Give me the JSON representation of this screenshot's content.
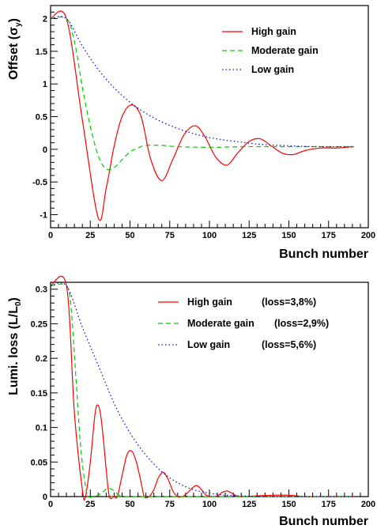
{
  "chart_data": [
    {
      "type": "line",
      "xlabel": "Bunch number",
      "ylabel": "Offset (σ",
      "ylabel_sub": "y",
      "ylabel_tail": ")",
      "xlim": [
        0,
        200
      ],
      "ylim": [
        -1.2,
        2.2
      ],
      "xticks": [
        0,
        25,
        50,
        75,
        100,
        125,
        150,
        175,
        200
      ],
      "yticks": [
        -1,
        -0.5,
        0,
        0.5,
        1,
        1.5,
        2
      ],
      "grid": false,
      "legend_position": "top-right",
      "series": [
        {
          "name": "High gain",
          "color": "#ff0000",
          "style": "solid",
          "x": [
            0,
            10,
            20,
            30,
            35,
            40,
            45,
            51,
            57,
            63,
            70,
            77,
            84,
            91,
            97,
            104,
            111,
            118,
            125,
            132,
            139,
            146,
            153,
            160,
            170,
            180,
            191
          ],
          "y": [
            2.0,
            2.0,
            0.45,
            -1.05,
            -0.6,
            0.05,
            0.5,
            0.68,
            0.5,
            -0.15,
            -0.48,
            -0.15,
            0.22,
            0.36,
            0.2,
            -0.12,
            -0.24,
            -0.05,
            0.12,
            0.16,
            0.05,
            -0.06,
            -0.08,
            -0.02,
            0.02,
            0.02,
            0.04
          ]
        },
        {
          "name": "Moderate gain",
          "color": "#00cc00",
          "style": "dashed",
          "x": [
            0,
            10,
            15,
            20,
            25,
            30,
            35,
            40,
            45,
            50,
            55,
            60,
            70,
            80,
            100,
            120,
            140,
            160,
            191
          ],
          "y": [
            2.0,
            2.0,
            1.65,
            0.95,
            0.35,
            -0.1,
            -0.3,
            -0.28,
            -0.16,
            -0.04,
            0.02,
            0.06,
            0.06,
            0.04,
            0.03,
            0.04,
            0.04,
            0.04,
            0.04
          ]
        },
        {
          "name": "Low gain",
          "color": "#0000ff",
          "style": "dotted",
          "x": [
            0,
            10,
            20,
            30,
            40,
            50,
            60,
            70,
            80,
            90,
            100,
            110,
            120,
            130,
            140,
            150,
            160,
            170,
            180,
            191
          ],
          "y": [
            2.0,
            2.0,
            1.58,
            1.22,
            0.94,
            0.72,
            0.55,
            0.42,
            0.32,
            0.24,
            0.18,
            0.14,
            0.11,
            0.08,
            0.065,
            0.055,
            0.045,
            0.04,
            0.04,
            0.04
          ]
        }
      ]
    },
    {
      "type": "line",
      "xlabel": "Bunch number",
      "ylabel": "Lumi. loss (L/L",
      "ylabel_sub": "0",
      "ylabel_tail": ")",
      "xlim": [
        0,
        200
      ],
      "ylim": [
        0,
        0.31
      ],
      "xticks": [
        0,
        25,
        50,
        75,
        100,
        125,
        150,
        175,
        200
      ],
      "yticks": [
        0,
        0.05,
        0.1,
        0.15,
        0.2,
        0.25,
        0.3
      ],
      "grid": false,
      "legend_position": "top-right",
      "series": [
        {
          "name": "High gain",
          "annotation": "(loss=3,8%)",
          "color": "#ff0000",
          "style": "solid",
          "x": [
            0,
            10,
            15,
            20,
            22,
            25,
            28,
            30,
            32,
            35,
            37,
            40,
            42,
            45,
            48,
            51,
            54,
            57,
            59,
            62,
            65,
            68,
            71,
            74,
            77,
            80,
            83,
            86,
            89,
            92,
            95,
            98,
            101,
            105,
            108,
            111,
            114,
            117,
            120,
            130,
            140,
            150,
            160,
            170,
            180,
            191
          ],
          "y": [
            0.305,
            0.305,
            0.12,
            0.01,
            0.0,
            0.05,
            0.12,
            0.132,
            0.11,
            0.04,
            0.0,
            0.0,
            0.0,
            0.03,
            0.06,
            0.066,
            0.05,
            0.02,
            0.0,
            0.0,
            0.01,
            0.028,
            0.035,
            0.025,
            0.008,
            0.0,
            0.0,
            0.005,
            0.012,
            0.016,
            0.01,
            0.002,
            0.0,
            0.001,
            0.006,
            0.008,
            0.005,
            0.001,
            0.0,
            0.001,
            0.002,
            0.002,
            0.0,
            0.0,
            0.0,
            0.0
          ]
        },
        {
          "name": "Moderate gain",
          "annotation": "(loss=2,9%)",
          "color": "#00cc00",
          "style": "dashed",
          "x": [
            0,
            10,
            13,
            16,
            19,
            22,
            24,
            27,
            30,
            33,
            36,
            39,
            42,
            45,
            50,
            191
          ],
          "y": [
            0.305,
            0.305,
            0.27,
            0.17,
            0.07,
            0.015,
            0.0,
            0.0,
            0.002,
            0.007,
            0.012,
            0.01,
            0.004,
            0.001,
            0.0,
            0.0
          ]
        },
        {
          "name": "Low gain",
          "annotation": "(loss=5,6%)",
          "color": "#0000ff",
          "style": "dotted",
          "x": [
            0,
            10,
            20,
            30,
            40,
            50,
            60,
            70,
            80,
            90,
            100,
            110,
            120,
            130,
            140,
            150,
            160,
            170,
            180,
            191
          ],
          "y": [
            0.305,
            0.305,
            0.245,
            0.19,
            0.135,
            0.092,
            0.06,
            0.036,
            0.02,
            0.01,
            0.005,
            0.002,
            0.001,
            0.0,
            0.0,
            0.0,
            0.0,
            0.0,
            0.0,
            0.0
          ]
        }
      ]
    }
  ]
}
